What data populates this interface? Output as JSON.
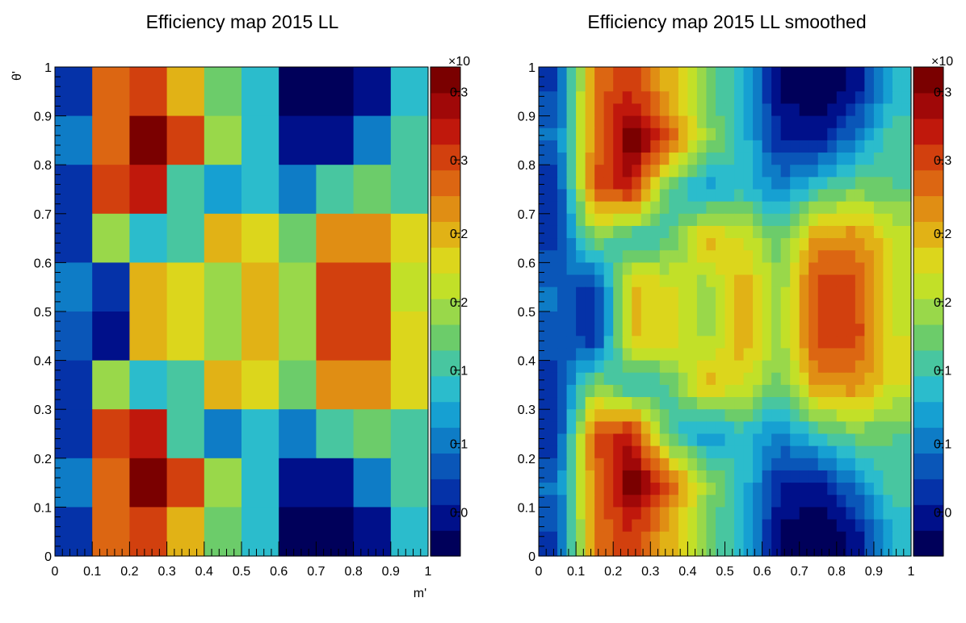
{
  "chart_data": [
    {
      "type": "heatmap",
      "title": "Efficiency map 2015 LL",
      "xlabel": "m'",
      "ylabel": "θ'",
      "xlim": [
        0,
        1
      ],
      "ylim": [
        0,
        1
      ],
      "x_ticks": [
        "0",
        "0.1",
        "0.2",
        "0.3",
        "0.4",
        "0.5",
        "0.6",
        "0.7",
        "0.8",
        "0.9",
        "1"
      ],
      "y_ticks": [
        "0",
        "0.1",
        "0.2",
        "0.3",
        "0.4",
        "0.5",
        "0.6",
        "0.7",
        "0.8",
        "0.9",
        "1"
      ],
      "colorbar": {
        "exponent_label": "×10",
        "tick_labels": [
          "0.0",
          "0.1",
          "0.1",
          "0.2",
          "0.2",
          "0.3",
          "0.3"
        ],
        "range": [
          0.0,
          1.0
        ]
      },
      "grid_rows_top_to_bottom": [
        [
          0.15,
          0.75,
          0.84,
          0.66,
          0.45,
          0.32,
          0.05,
          0.0,
          0.07,
          0.32
        ],
        [
          0.22,
          0.74,
          1.0,
          0.8,
          0.5,
          0.35,
          0.1,
          0.1,
          0.24,
          0.42
        ],
        [
          0.12,
          0.8,
          0.86,
          0.4,
          0.28,
          0.35,
          0.25,
          0.37,
          0.46,
          0.42
        ],
        [
          0.13,
          0.48,
          0.36,
          0.4,
          0.66,
          0.58,
          0.43,
          0.72,
          0.72,
          0.58
        ],
        [
          0.22,
          0.12,
          0.64,
          0.6,
          0.49,
          0.68,
          0.49,
          0.82,
          0.82,
          0.56
        ],
        [
          0.2,
          0.1,
          0.64,
          0.62,
          0.5,
          0.68,
          0.5,
          0.82,
          0.82,
          0.58
        ],
        [
          0.12,
          0.48,
          0.34,
          0.4,
          0.66,
          0.58,
          0.43,
          0.72,
          0.72,
          0.58
        ],
        [
          0.12,
          0.8,
          0.86,
          0.4,
          0.26,
          0.35,
          0.25,
          0.37,
          0.46,
          0.42
        ],
        [
          0.22,
          0.74,
          1.0,
          0.8,
          0.5,
          0.35,
          0.1,
          0.1,
          0.24,
          0.42
        ],
        [
          0.15,
          0.74,
          0.84,
          0.66,
          0.45,
          0.32,
          0.05,
          0.0,
          0.07,
          0.32
        ]
      ]
    },
    {
      "type": "heatmap",
      "title": "Efficiency map 2015 LL smoothed",
      "xlabel": "",
      "ylabel": "",
      "xlim": [
        0,
        1
      ],
      "ylim": [
        0,
        1
      ],
      "x_ticks": [
        "0",
        "0.1",
        "0.2",
        "0.3",
        "0.4",
        "0.5",
        "0.6",
        "0.7",
        "0.8",
        "0.9",
        "1"
      ],
      "y_ticks": [
        "0",
        "0.1",
        "0.2",
        "0.3",
        "0.4",
        "0.5",
        "0.6",
        "0.7",
        "0.8",
        "0.9",
        "1"
      ],
      "colorbar": {
        "exponent_label": "×10",
        "tick_labels": [
          "0.0",
          "0.1",
          "0.1",
          "0.2",
          "0.2",
          "0.3",
          "0.3"
        ],
        "range": [
          0.0,
          1.0
        ]
      },
      "smoothed_from": 0,
      "smoothed_resolution": 40
    }
  ],
  "palette": [
    "#00005a",
    "#00108a",
    "#0532a8",
    "#0a56b8",
    "#0e7cc6",
    "#16a0d2",
    "#2bbccc",
    "#48c6a0",
    "#6ccc6a",
    "#99d84a",
    "#c2e028",
    "#dcd61c",
    "#e1b216",
    "#e08e14",
    "#dc6612",
    "#d2400e",
    "#c0180c",
    "#a00808",
    "#7a0000"
  ]
}
